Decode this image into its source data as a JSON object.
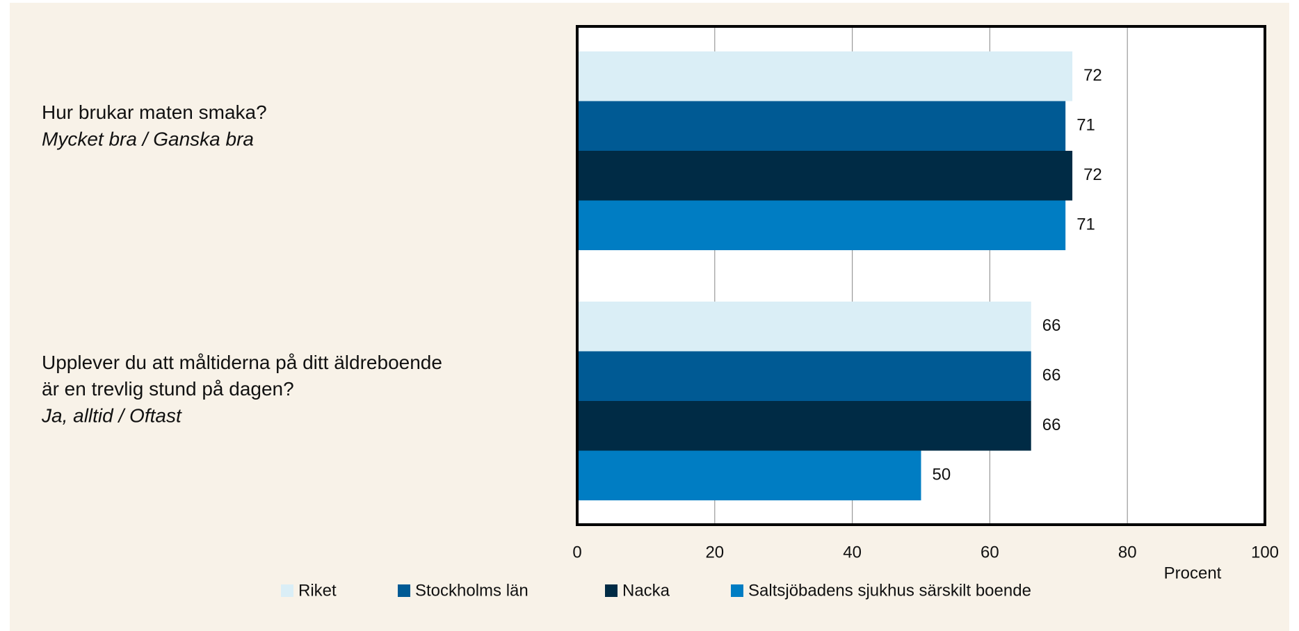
{
  "chart_data": {
    "type": "bar",
    "orientation": "horizontal",
    "categories": [
      "Hur brukar maten smaka?",
      "Upplever du att måltiderna på ditt äldreboende\när en trevlig stund på dagen?"
    ],
    "category_subtitles": [
      "Mycket bra / Ganska bra",
      "Ja, alltid / Oftast"
    ],
    "series": [
      {
        "name": "Riket",
        "color": "#daeef6",
        "values": [
          72,
          66
        ]
      },
      {
        "name": "Stockholms län",
        "color": "#005a94",
        "values": [
          71,
          66
        ]
      },
      {
        "name": "Nacka",
        "color": "#002b45",
        "values": [
          72,
          66
        ]
      },
      {
        "name": "Saltsjöbadens sjukhus särskilt boende",
        "color": "#007dc3",
        "values": [
          71,
          50
        ]
      }
    ],
    "xlabel": "Procent",
    "xlim": [
      0,
      100
    ],
    "xticks": [
      0,
      20,
      40,
      60,
      80,
      100
    ],
    "grid": true,
    "legend": "bottom"
  }
}
